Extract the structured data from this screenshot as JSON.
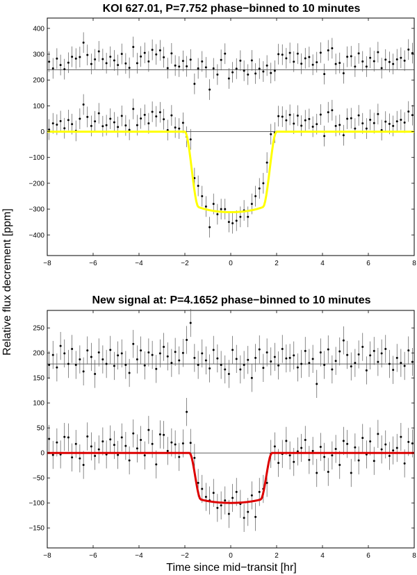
{
  "figure": {
    "ylabel": "Relative flux decrement [ppm]",
    "xlabel": "Time since mid−transit [hr]"
  },
  "chart_data": [
    {
      "type": "scatter",
      "title": "KOI 627.01, P=7.752 phase−binned to 10 minutes",
      "xlim": [
        -8,
        8
      ],
      "ylim": [
        -480,
        440
      ],
      "xticks": [
        -8,
        -6,
        -4,
        -2,
        0,
        2,
        4,
        6,
        8
      ],
      "yticks": [
        -400,
        -300,
        -200,
        -100,
        0,
        100,
        200,
        300,
        400
      ],
      "grid": false,
      "colors": {
        "model": "#ffff00",
        "points": "#000000",
        "baseline": "#000000"
      },
      "baselines": [
        240,
        0
      ],
      "model": {
        "name": "",
        "depth": 312,
        "t_total": 2.0,
        "t_flat": 1.4
      },
      "err_bar": 40,
      "series": [
        {
          "offset": 240,
          "x": [
            -7.92,
            -7.75,
            -7.58,
            -7.42,
            -7.25,
            -7.08,
            -6.92,
            -6.75,
            -6.58,
            -6.42,
            -6.25,
            -6.08,
            -5.92,
            -5.75,
            -5.58,
            -5.42,
            -5.25,
            -5.08,
            -4.92,
            -4.75,
            -4.58,
            -4.42,
            -4.25,
            -4.08,
            -3.92,
            -3.75,
            -3.58,
            -3.42,
            -3.25,
            -3.08,
            -2.92,
            -2.75,
            -2.58,
            -2.42,
            -2.25,
            -2.08,
            -1.92,
            -1.75,
            -1.58,
            -1.42,
            -1.25,
            -1.08,
            -0.92,
            -0.75,
            -0.58,
            -0.42,
            -0.25,
            -0.08,
            0.08,
            0.25,
            0.42,
            0.58,
            0.75,
            0.92,
            1.08,
            1.25,
            1.42,
            1.58,
            1.75,
            1.92,
            2.08,
            2.25,
            2.42,
            2.58,
            2.75,
            2.92,
            3.08,
            3.25,
            3.42,
            3.58,
            3.75,
            3.92,
            4.08,
            4.25,
            4.42,
            4.58,
            4.75,
            4.92,
            5.08,
            5.25,
            5.42,
            5.58,
            5.75,
            5.92,
            6.08,
            6.25,
            6.42,
            6.58,
            6.75,
            6.92,
            7.08,
            7.25,
            7.42,
            7.58,
            7.75,
            7.92
          ],
          "y": [
            271,
            245,
            283,
            258,
            242,
            267,
            290,
            283,
            289,
            345,
            297,
            262,
            280,
            311,
            281,
            265,
            290,
            276,
            258,
            301,
            264,
            247,
            328,
            265,
            291,
            305,
            272,
            317,
            299,
            315,
            288,
            246,
            303,
            256,
            252,
            274,
            253,
            279,
            185,
            245,
            272,
            249,
            163,
            245,
            221,
            278,
            302,
            206,
            230,
            244,
            275,
            236,
            221,
            276,
            225,
            244,
            233,
            256,
            227,
            236,
            300,
            298,
            284,
            305,
            271,
            302,
            263,
            284,
            289,
            259,
            269,
            306,
            223,
            315,
            323,
            262,
            266,
            226,
            290,
            292,
            252,
            303,
            272,
            252,
            286,
            273,
            308,
            246,
            279,
            270,
            262,
            280,
            286,
            275,
            318,
            304
          ]
        },
        {
          "offset": 0,
          "x": [
            -7.92,
            -7.75,
            -7.58,
            -7.42,
            -7.25,
            -7.08,
            -6.92,
            -6.75,
            -6.58,
            -6.42,
            -6.25,
            -6.08,
            -5.92,
            -5.75,
            -5.58,
            -5.42,
            -5.25,
            -5.08,
            -4.92,
            -4.75,
            -4.58,
            -4.42,
            -4.25,
            -4.08,
            -3.92,
            -3.75,
            -3.58,
            -3.42,
            -3.25,
            -3.08,
            -2.92,
            -2.75,
            -2.58,
            -2.42,
            -2.25,
            -2.08,
            -1.92,
            -1.75,
            -1.58,
            -1.42,
            -1.25,
            -1.08,
            -0.92,
            -0.75,
            -0.58,
            -0.42,
            -0.25,
            -0.08,
            0.08,
            0.25,
            0.42,
            0.58,
            0.75,
            0.92,
            1.08,
            1.25,
            1.42,
            1.58,
            1.75,
            1.92,
            2.08,
            2.25,
            2.42,
            2.58,
            2.75,
            2.92,
            3.08,
            3.25,
            3.42,
            3.58,
            3.75,
            3.92,
            4.08,
            4.25,
            4.42,
            4.58,
            4.75,
            4.92,
            5.08,
            5.25,
            5.42,
            5.58,
            5.75,
            5.92,
            6.08,
            6.25,
            6.42,
            6.58,
            6.75,
            6.92,
            7.08,
            7.25,
            7.42,
            7.58,
            7.75,
            7.92
          ],
          "y": [
            8,
            32,
            27,
            41,
            13,
            45,
            29,
            3,
            50,
            105,
            57,
            22,
            40,
            71,
            21,
            25,
            50,
            36,
            18,
            61,
            24,
            7,
            88,
            25,
            51,
            65,
            32,
            77,
            59,
            75,
            48,
            6,
            63,
            16,
            12,
            34,
            -20,
            -30,
            -180,
            -210,
            -250,
            -290,
            -370,
            -280,
            -320,
            -300,
            -300,
            -350,
            -355,
            -345,
            -330,
            -305,
            -330,
            -280,
            -250,
            -220,
            -200,
            -120,
            -10,
            -4,
            60,
            58,
            44,
            65,
            31,
            62,
            23,
            44,
            49,
            19,
            29,
            66,
            -17,
            75,
            83,
            22,
            26,
            -14,
            50,
            52,
            12,
            63,
            32,
            12,
            46,
            33,
            68,
            6,
            39,
            30,
            22,
            40,
            46,
            35,
            78,
            64
          ]
        }
      ]
    },
    {
      "type": "scatter",
      "title": "New signal at: P=4.1652 phase−binned to 10 minutes",
      "xlim": [
        -8,
        8
      ],
      "ylim": [
        -190,
        285
      ],
      "xticks": [
        -8,
        -6,
        -4,
        -2,
        0,
        2,
        4,
        6,
        8
      ],
      "yticks": [
        -150,
        -100,
        -50,
        0,
        50,
        100,
        150,
        200,
        250
      ],
      "grid": false,
      "colors": {
        "model": "#dd0000",
        "points": "#000000",
        "baseline": "#000000"
      },
      "baselines": [
        178,
        0
      ],
      "model": {
        "name": "",
        "depth": 100,
        "t_total": 1.8,
        "t_flat": 1.3
      },
      "err_bar": 28,
      "series": [
        {
          "offset": 178,
          "x": [
            -7.92,
            -7.75,
            -7.58,
            -7.42,
            -7.25,
            -7.08,
            -6.92,
            -6.75,
            -6.58,
            -6.42,
            -6.25,
            -6.08,
            -5.92,
            -5.75,
            -5.58,
            -5.42,
            -5.25,
            -5.08,
            -4.92,
            -4.75,
            -4.58,
            -4.42,
            -4.25,
            -4.08,
            -3.92,
            -3.75,
            -3.58,
            -3.42,
            -3.25,
            -3.08,
            -2.92,
            -2.75,
            -2.58,
            -2.42,
            -2.25,
            -2.08,
            -1.92,
            -1.75,
            -1.58,
            -1.42,
            -1.25,
            -1.08,
            -0.92,
            -0.75,
            -0.58,
            -0.42,
            -0.25,
            -0.08,
            0.08,
            0.25,
            0.42,
            0.58,
            0.75,
            0.92,
            1.08,
            1.25,
            1.42,
            1.58,
            1.75,
            1.92,
            2.08,
            2.25,
            2.42,
            2.58,
            2.75,
            2.92,
            3.08,
            3.25,
            3.42,
            3.58,
            3.75,
            3.92,
            4.08,
            4.25,
            4.42,
            4.58,
            4.75,
            4.92,
            5.08,
            5.25,
            5.42,
            5.58,
            5.75,
            5.92,
            6.08,
            6.25,
            6.42,
            6.58,
            6.75,
            6.92,
            7.08,
            7.25,
            7.42,
            7.58,
            7.75,
            7.92
          ],
          "y": [
            176,
            196,
            171,
            214,
            199,
            178,
            208,
            176,
            187,
            163,
            205,
            192,
            158,
            201,
            187,
            178,
            206,
            174,
            195,
            199,
            176,
            160,
            218,
            187,
            205,
            175,
            201,
            196,
            168,
            199,
            212,
            193,
            180,
            202,
            185,
            200,
            226,
            260,
            190,
            176,
            199,
            185,
            169,
            206,
            189,
            176,
            167,
            158,
            206,
            188,
            167,
            176,
            186,
            150,
            190,
            207,
            170,
            201,
            183,
            192,
            175,
            208,
            189,
            190,
            195,
            171,
            178,
            204,
            180,
            188,
            138,
            201,
            176,
            207,
            167,
            184,
            203,
            225,
            196,
            173,
            180,
            197,
            212,
            165,
            195,
            204,
            182,
            199,
            208,
            178,
            166,
            190,
            180,
            174,
            205,
            182
          ]
        },
        {
          "offset": 0,
          "x": [
            -7.92,
            -7.75,
            -7.58,
            -7.42,
            -7.25,
            -7.08,
            -6.92,
            -6.75,
            -6.58,
            -6.42,
            -6.25,
            -6.08,
            -5.92,
            -5.75,
            -5.58,
            -5.42,
            -5.25,
            -5.08,
            -4.92,
            -4.75,
            -4.58,
            -4.42,
            -4.25,
            -4.08,
            -3.92,
            -3.75,
            -3.58,
            -3.42,
            -3.25,
            -3.08,
            -2.92,
            -2.75,
            -2.58,
            -2.42,
            -2.25,
            -2.08,
            -1.92,
            -1.75,
            -1.58,
            -1.42,
            -1.25,
            -1.08,
            -0.92,
            -0.75,
            -0.58,
            -0.42,
            -0.25,
            -0.08,
            0.08,
            0.25,
            0.42,
            0.58,
            0.75,
            0.92,
            1.08,
            1.25,
            1.42,
            1.58,
            1.75,
            1.92,
            2.08,
            2.25,
            2.42,
            2.58,
            2.75,
            2.92,
            3.08,
            3.25,
            3.42,
            3.58,
            3.75,
            3.92,
            4.08,
            4.25,
            4.42,
            4.58,
            4.75,
            4.92,
            5.08,
            5.25,
            5.42,
            5.58,
            5.75,
            5.92,
            6.08,
            6.25,
            6.42,
            6.58,
            6.75,
            6.92,
            7.08,
            7.25,
            7.42,
            7.58,
            7.75,
            7.92
          ],
          "y": [
            28,
            -4,
            21,
            -3,
            32,
            31,
            -9,
            18,
            -11,
            -24,
            33,
            13,
            -6,
            7,
            23,
            -3,
            27,
            16,
            -4,
            31,
            14,
            -15,
            39,
            9,
            26,
            -5,
            46,
            18,
            -23,
            37,
            36,
            4,
            21,
            17,
            -8,
            19,
            82,
            20,
            -10,
            -60,
            -72,
            -88,
            -95,
            -80,
            -110,
            -105,
            -95,
            -122,
            -90,
            -78,
            -102,
            -130,
            -118,
            -85,
            -128,
            -78,
            -72,
            -60,
            -2,
            13,
            -20,
            -2,
            24,
            -5,
            -18,
            3,
            10,
            26,
            -14,
            4,
            -40,
            12,
            -8,
            -38,
            -5,
            8,
            -24,
            24,
            18,
            -40,
            11,
            -15,
            30,
            -3,
            23,
            -16,
            38,
            7,
            17,
            -6,
            5,
            10,
            32,
            -21,
            22,
            19
          ]
        }
      ]
    }
  ]
}
